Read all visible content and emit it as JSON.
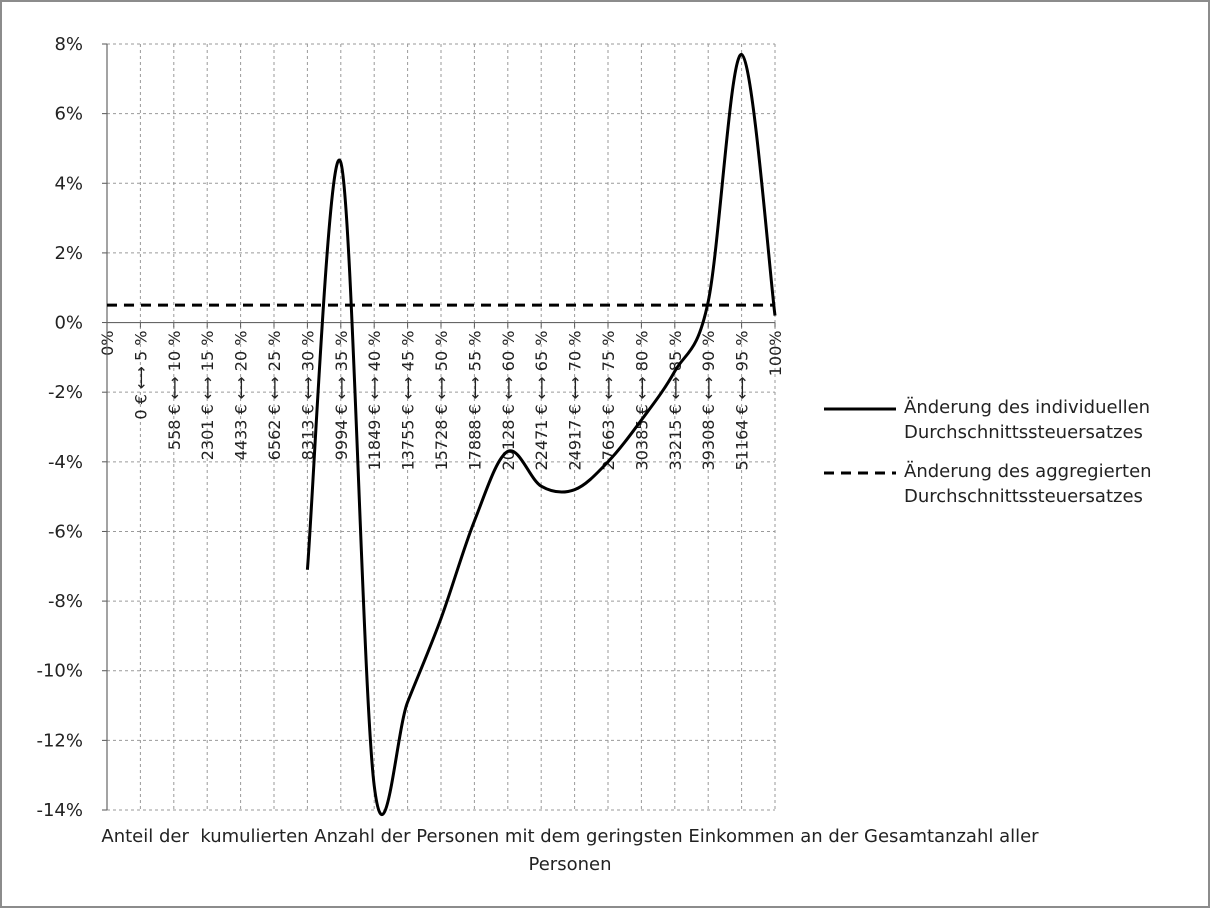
{
  "chart_data": {
    "type": "line",
    "categories": [
      "0%",
      "0 € ⟷ 5 %",
      "558 € ⟷ 10 %",
      "2301 € ⟷ 15 %",
      "4433 € ⟷ 20 %",
      "6562 € ⟷ 25 %",
      "8313 € ⟷ 30 %",
      "9994 € ⟷ 35 %",
      "11849 € ⟷ 40 %",
      "13755 € ⟷ 45 %",
      "15728 € ⟷ 50 %",
      "17888 € ⟷ 55 %",
      "20128 € ⟷ 60 %",
      "22471 € ⟷ 65 %",
      "24917 € ⟷ 70 %",
      "27663 € ⟷ 75 %",
      "30385 € ⟷ 80 %",
      "33215 € ⟷ 85 %",
      "39308 € ⟷ 90 %",
      "51164 € ⟷ 95 %",
      "100%"
    ],
    "series": [
      {
        "name": "Änderung des individuellen Durchschnittssteuersatzes",
        "color": "#000000",
        "dash": "solid",
        "values": [
          null,
          null,
          null,
          null,
          null,
          null,
          -7.1,
          4.6,
          -13.3,
          -10.9,
          -8.5,
          -5.7,
          -3.7,
          -4.7,
          -4.8,
          -4.0,
          -2.8,
          -1.4,
          0.6,
          7.7,
          0.2
        ]
      },
      {
        "name": "Änderung des aggregierten Durchschnittssteuersatzes",
        "color": "#000000",
        "dash": "dashed",
        "values": [
          0.5,
          0.5,
          0.5,
          0.5,
          0.5,
          0.5,
          0.5,
          0.5,
          0.5,
          0.5,
          0.5,
          0.5,
          0.5,
          0.5,
          0.5,
          0.5,
          0.5,
          0.5,
          0.5,
          0.5,
          0.5
        ]
      }
    ],
    "xlabel": "Anteil der  kumulierten Anzahl der Personen mit dem geringsten Einkommen an der Gesamtanzahl aller Personen",
    "ylim": [
      -14,
      8
    ],
    "yticks": [
      {
        "value": -14,
        "label": "-14%"
      },
      {
        "value": -12,
        "label": "-12%"
      },
      {
        "value": -10,
        "label": "-10%"
      },
      {
        "value": -8,
        "label": "-8%"
      },
      {
        "value": -6,
        "label": "-6%"
      },
      {
        "value": -4,
        "label": "-4%"
      },
      {
        "value": -2,
        "label": "-2%"
      },
      {
        "value": 0,
        "label": "0%"
      },
      {
        "value": 2,
        "label": "2%"
      },
      {
        "value": 4,
        "label": "4%"
      },
      {
        "value": 6,
        "label": "6%"
      },
      {
        "value": 8,
        "label": "8%"
      }
    ],
    "grid": true,
    "legend": "right"
  }
}
